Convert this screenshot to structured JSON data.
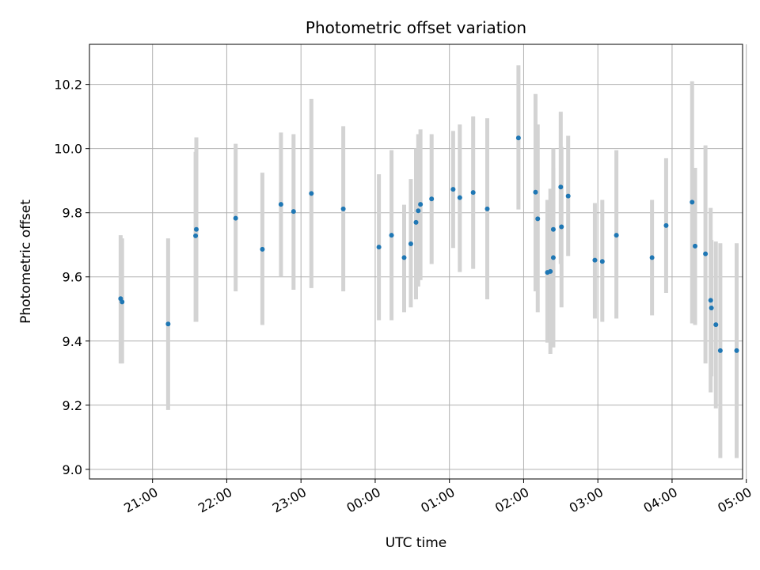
{
  "chart_data": {
    "type": "scatter",
    "title": "Photometric offset variation",
    "xlabel": "UTC time",
    "ylabel": "Photometric offset",
    "x_unit": "hours",
    "xlim": [
      -3.85,
      4.95
    ],
    "ylim": [
      8.97,
      10.325
    ],
    "grid": true,
    "x_ticks": [
      {
        "value": -3,
        "label": "21:00"
      },
      {
        "value": -2,
        "label": "22:00"
      },
      {
        "value": -1,
        "label": "23:00"
      },
      {
        "value": 0,
        "label": "00:00"
      },
      {
        "value": 1,
        "label": "01:00"
      },
      {
        "value": 2,
        "label": "02:00"
      },
      {
        "value": 3,
        "label": "03:00"
      },
      {
        "value": 4,
        "label": "04:00"
      },
      {
        "value": 5,
        "label": "05:00"
      }
    ],
    "y_ticks": [
      {
        "value": 9.0,
        "label": "9.0"
      },
      {
        "value": 9.2,
        "label": "9.2"
      },
      {
        "value": 9.4,
        "label": "9.4"
      },
      {
        "value": 9.6,
        "label": "9.6"
      },
      {
        "value": 9.8,
        "label": "9.8"
      },
      {
        "value": 10.0,
        "label": "10.0"
      },
      {
        "value": 10.2,
        "label": "10.2"
      }
    ],
    "point_color": "#1f77b4",
    "errorbar_color": "#d3d3d3",
    "series": [
      {
        "points": [
          {
            "x": -3.43,
            "y": 9.532,
            "lo": 9.33,
            "hi": 9.73
          },
          {
            "x": -3.41,
            "y": 9.522,
            "lo": 9.33,
            "hi": 9.72
          },
          {
            "x": -2.79,
            "y": 9.453,
            "lo": 9.185,
            "hi": 9.72
          },
          {
            "x": -2.41,
            "y": 9.748,
            "lo": 9.46,
            "hi": 10.035
          },
          {
            "x": -2.42,
            "y": 9.728,
            "lo": 9.46,
            "hi": 9.99
          },
          {
            "x": -1.88,
            "y": 9.783,
            "lo": 9.555,
            "hi": 10.015
          },
          {
            "x": -1.52,
            "y": 9.686,
            "lo": 9.45,
            "hi": 9.925
          },
          {
            "x": -1.27,
            "y": 9.826,
            "lo": 9.6,
            "hi": 10.05
          },
          {
            "x": -1.1,
            "y": 9.804,
            "lo": 9.56,
            "hi": 10.045
          },
          {
            "x": -0.86,
            "y": 9.86,
            "lo": 9.565,
            "hi": 10.155
          },
          {
            "x": -0.43,
            "y": 9.812,
            "lo": 9.555,
            "hi": 10.07
          },
          {
            "x": 0.05,
            "y": 9.693,
            "lo": 9.465,
            "hi": 9.92
          },
          {
            "x": 0.22,
            "y": 9.73,
            "lo": 9.465,
            "hi": 9.995
          },
          {
            "x": 0.39,
            "y": 9.66,
            "lo": 9.49,
            "hi": 9.825
          },
          {
            "x": 0.48,
            "y": 9.703,
            "lo": 9.505,
            "hi": 9.905
          },
          {
            "x": 0.55,
            "y": 9.77,
            "lo": 9.53,
            "hi": 10.0
          },
          {
            "x": 0.58,
            "y": 9.806,
            "lo": 9.57,
            "hi": 10.045
          },
          {
            "x": 0.61,
            "y": 9.826,
            "lo": 9.59,
            "hi": 10.06
          },
          {
            "x": 0.76,
            "y": 9.843,
            "lo": 9.64,
            "hi": 10.045
          },
          {
            "x": 1.05,
            "y": 9.873,
            "lo": 9.69,
            "hi": 10.055
          },
          {
            "x": 1.14,
            "y": 9.847,
            "lo": 9.615,
            "hi": 10.075
          },
          {
            "x": 1.32,
            "y": 9.863,
            "lo": 9.625,
            "hi": 10.1
          },
          {
            "x": 1.51,
            "y": 9.812,
            "lo": 9.53,
            "hi": 10.095
          },
          {
            "x": 1.93,
            "y": 10.033,
            "lo": 9.81,
            "hi": 10.26
          },
          {
            "x": 2.16,
            "y": 9.864,
            "lo": 9.555,
            "hi": 10.17
          },
          {
            "x": 2.19,
            "y": 9.781,
            "lo": 9.49,
            "hi": 10.075
          },
          {
            "x": 2.32,
            "y": 9.614,
            "lo": 9.395,
            "hi": 9.84
          },
          {
            "x": 2.36,
            "y": 9.617,
            "lo": 9.36,
            "hi": 9.875
          },
          {
            "x": 2.4,
            "y": 9.748,
            "lo": 9.495,
            "hi": 10.0
          },
          {
            "x": 2.4,
            "y": 9.66,
            "lo": 9.38,
            "hi": 9.94
          },
          {
            "x": 2.5,
            "y": 9.88,
            "lo": 9.64,
            "hi": 10.115
          },
          {
            "x": 2.51,
            "y": 9.756,
            "lo": 9.505,
            "hi": 10.005
          },
          {
            "x": 2.6,
            "y": 9.852,
            "lo": 9.665,
            "hi": 10.04
          },
          {
            "x": 2.96,
            "y": 9.652,
            "lo": 9.47,
            "hi": 9.83
          },
          {
            "x": 3.06,
            "y": 9.648,
            "lo": 9.46,
            "hi": 9.84
          },
          {
            "x": 3.25,
            "y": 9.73,
            "lo": 9.47,
            "hi": 9.995
          },
          {
            "x": 3.73,
            "y": 9.66,
            "lo": 9.48,
            "hi": 9.84
          },
          {
            "x": 3.92,
            "y": 9.76,
            "lo": 9.55,
            "hi": 9.97
          },
          {
            "x": 4.27,
            "y": 9.833,
            "lo": 9.455,
            "hi": 10.21
          },
          {
            "x": 4.31,
            "y": 9.696,
            "lo": 9.45,
            "hi": 9.94
          },
          {
            "x": 4.45,
            "y": 9.672,
            "lo": 9.33,
            "hi": 10.01
          },
          {
            "x": 4.52,
            "y": 9.527,
            "lo": 9.24,
            "hi": 9.815
          },
          {
            "x": 4.53,
            "y": 9.503,
            "lo": 9.29,
            "hi": 9.715
          },
          {
            "x": 4.59,
            "y": 9.451,
            "lo": 9.19,
            "hi": 9.71
          },
          {
            "x": 4.65,
            "y": 9.37,
            "lo": 9.035,
            "hi": 9.705
          },
          {
            "x": 4.87,
            "y": 9.37,
            "lo": 9.035,
            "hi": 9.705
          }
        ]
      }
    ]
  }
}
